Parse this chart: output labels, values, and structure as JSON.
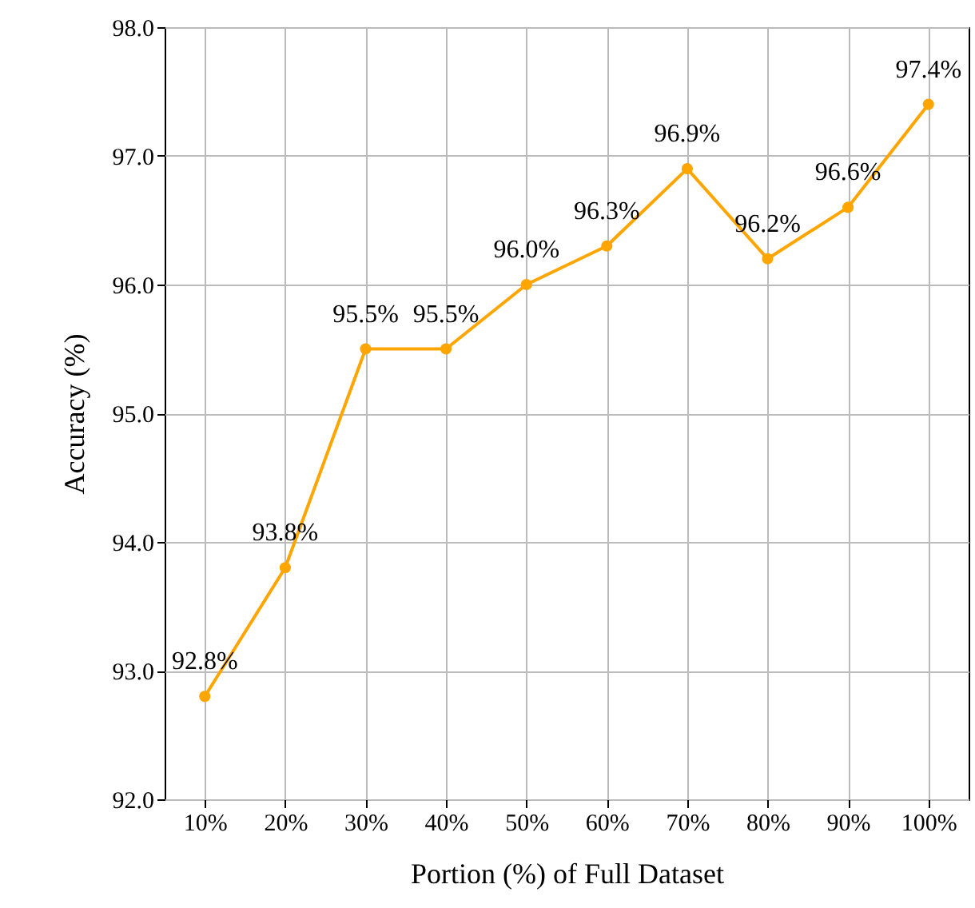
{
  "chart_data": {
    "type": "line",
    "xlabel": "Portion (%) of Full Dataset",
    "ylabel": "Accuracy (%)",
    "categories": [
      "10%",
      "20%",
      "30%",
      "40%",
      "50%",
      "60%",
      "70%",
      "80%",
      "90%",
      "100%"
    ],
    "series": [
      {
        "color": "#ffa500",
        "values": [
          92.8,
          93.8,
          95.5,
          95.5,
          96.0,
          96.3,
          96.9,
          96.2,
          96.6,
          97.4
        ],
        "value_labels": [
          "92.8%",
          "93.8%",
          "95.5%",
          "95.5%",
          "96.0%",
          "96.3%",
          "96.9%",
          "96.2%",
          "96.6%",
          "97.4%"
        ]
      }
    ],
    "ylim": [
      92.0,
      98.0
    ],
    "yticks": [
      {
        "value": 92,
        "label": "92.0"
      },
      {
        "value": 93,
        "label": "93.0"
      },
      {
        "value": 94,
        "label": "94.0"
      },
      {
        "value": 95,
        "label": "95.0"
      },
      {
        "value": 96,
        "label": "96.0"
      },
      {
        "value": 97,
        "label": "97.0"
      },
      {
        "value": 98,
        "label": "98.0"
      }
    ],
    "grid": true,
    "marker": "circle",
    "line_style": "solid"
  }
}
